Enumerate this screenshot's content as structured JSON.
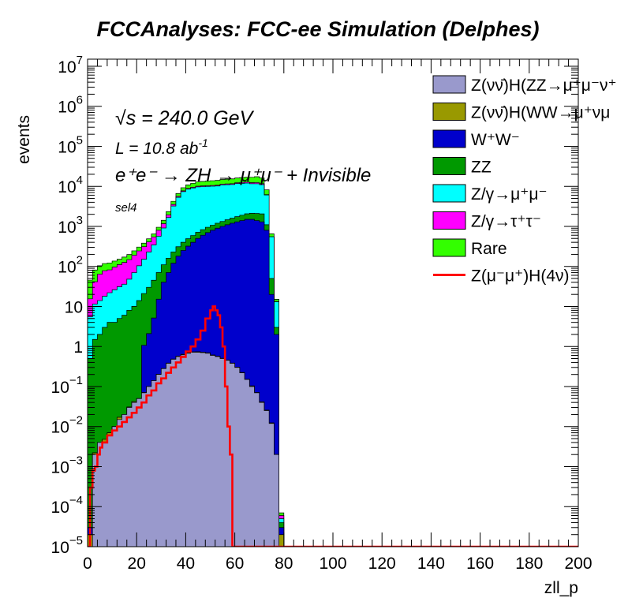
{
  "chart_data": {
    "type": "area",
    "title": "FCCAnalyses: FCC-ee Simulation (Delphes)",
    "xlabel": "zll_p",
    "ylabel": "events",
    "xlim": [
      0,
      200
    ],
    "ylim": [
      1e-05,
      15000000
    ],
    "yscale": "log",
    "stacked": true,
    "legend_position": "top-right",
    "x_ticks": [
      "0",
      "20",
      "40",
      "60",
      "80",
      "100",
      "120",
      "140",
      "160",
      "180",
      "200"
    ],
    "y_ticks": [
      {
        "base": "10",
        "exp": "−5",
        "value": 1e-05
      },
      {
        "base": "10",
        "exp": "−4",
        "value": 0.0001
      },
      {
        "base": "10",
        "exp": "−3",
        "value": 0.001
      },
      {
        "base": "10",
        "exp": "−2",
        "value": 0.01
      },
      {
        "base": "10",
        "exp": "−1",
        "value": 0.1
      },
      {
        "base": "1",
        "exp": "",
        "value": 1
      },
      {
        "base": "10",
        "exp": "",
        "value": 10
      },
      {
        "base": "10",
        "exp": "2",
        "value": 100
      },
      {
        "base": "10",
        "exp": "3",
        "value": 1000
      },
      {
        "base": "10",
        "exp": "4",
        "value": 10000
      },
      {
        "base": "10",
        "exp": "5",
        "value": 100000
      },
      {
        "base": "10",
        "exp": "6",
        "value": 1000000
      },
      {
        "base": "10",
        "exp": "7",
        "value": 10000000
      }
    ],
    "annotations": {
      "sqrt_s": "√s = 240.0 GeV",
      "sqrt_s_prefix": "√",
      "sqrt_s_rest": "s = 240.0 GeV",
      "lumi": "L = 10.8 ab",
      "lumi_exp": "-1",
      "process": "e⁺e⁻ → ZH → μ⁺μ⁻ + Invisible",
      "selection": "sel4"
    },
    "x_bins": [
      1,
      3,
      5,
      7,
      9,
      11,
      13,
      15,
      17,
      19,
      21,
      23,
      25,
      27,
      29,
      31,
      33,
      35,
      37,
      39,
      41,
      43,
      45,
      47,
      49,
      51,
      53,
      55,
      57,
      59,
      61,
      63,
      65,
      67,
      69,
      71,
      73,
      75,
      77,
      79
    ],
    "series": [
      {
        "name": "Z(νν̄)H(ZZ→μ⁺μ⁻ν⁺",
        "color": "#9999cc",
        "values": [
          1e-05,
          0.002,
          0.004,
          0.004,
          0.006,
          0.01,
          0.015,
          0.02,
          0.03,
          0.04,
          0.05,
          0.07,
          0.1,
          0.14,
          0.2,
          0.28,
          0.38,
          0.48,
          0.56,
          0.62,
          0.68,
          0.72,
          0.72,
          0.7,
          0.68,
          0.6,
          0.56,
          0.5,
          0.45,
          0.38,
          0.3,
          0.22,
          0.15,
          0.1,
          0.07,
          0.04,
          0.025,
          0.012,
          0.002,
          1e-05
        ]
      },
      {
        "name": "Z(νν̄)H(WW→μ⁺νμ",
        "color": "#999900",
        "values": [
          1e-05,
          0.0002,
          1e-05,
          0.0008,
          0.001,
          1e-05,
          0.002,
          1e-05,
          0.001,
          0.002,
          1e-05,
          0.001,
          1e-05,
          0.0008,
          0.003,
          0.002,
          0.005,
          0.008,
          0.015,
          0.02,
          0.02,
          0.018,
          0.02,
          0.018,
          0.016,
          0.014,
          0.012,
          0.01,
          0.006,
          0.006,
          0.004,
          0.005,
          0.002,
          0.004,
          0.001,
          0.0015,
          0.0008,
          0.0004,
          1e-05,
          1e-05
        ]
      },
      {
        "name": "W⁺W⁻",
        "color": "#0000cc",
        "values": [
          1e-05,
          1e-05,
          1e-05,
          1e-05,
          1e-05,
          1e-05,
          1e-05,
          1e-05,
          1e-05,
          1e-05,
          1e-05,
          1,
          2,
          5,
          15,
          40,
          70,
          120,
          180,
          250,
          320,
          400,
          500,
          600,
          700,
          800,
          900,
          1000,
          1100,
          1200,
          1300,
          1400,
          1500,
          1500,
          1400,
          1300,
          800,
          20,
          2,
          1e-05
        ]
      },
      {
        "name": "ZZ",
        "color": "#009900",
        "values": [
          0.5,
          1.5,
          2,
          3,
          4,
          4,
          5,
          6,
          8,
          10,
          14,
          20,
          28,
          40,
          55,
          70,
          90,
          110,
          130,
          150,
          170,
          190,
          210,
          230,
          250,
          270,
          300,
          330,
          360,
          400,
          450,
          500,
          560,
          620,
          700,
          750,
          300,
          30,
          1,
          1e-05
        ]
      },
      {
        "name": "Z/γ→μ⁺μ⁻",
        "color": "#00ffff",
        "values": [
          5,
          10,
          12,
          15,
          18,
          22,
          26,
          30,
          40,
          60,
          90,
          130,
          200,
          300,
          500,
          800,
          1500,
          3000,
          5000,
          7000,
          8000,
          8500,
          9000,
          9000,
          9000,
          9000,
          9000,
          9500,
          9500,
          9500,
          10000,
          10000,
          10000,
          9500,
          9500,
          9000,
          5000,
          500,
          10,
          1e-05
        ]
      },
      {
        "name": "Z/γ→τ⁺τ⁻",
        "color": "#ff00ff",
        "values": [
          10,
          30,
          50,
          60,
          60,
          70,
          80,
          90,
          100,
          120,
          140,
          160,
          180,
          200,
          230,
          260,
          280,
          300,
          320,
          340,
          360,
          380,
          400,
          420,
          440,
          460,
          480,
          500,
          520,
          560,
          600,
          650,
          700,
          750,
          800,
          600,
          100,
          2,
          0.1,
          1e-05
        ]
      },
      {
        "name": "Rare",
        "color": "#33ff00",
        "values": [
          30,
          40,
          40,
          40,
          40,
          40,
          40,
          45,
          50,
          55,
          60,
          70,
          80,
          100,
          150,
          250,
          400,
          700,
          1000,
          1500,
          2000,
          2400,
          2800,
          3000,
          3200,
          3300,
          3400,
          3500,
          3600,
          3700,
          3800,
          4000,
          4200,
          4500,
          5000,
          4500,
          2000,
          100,
          2,
          1e-05
        ]
      }
    ],
    "signal": {
      "name": "Z(μ⁻μ⁺)H(4ν)",
      "color": "#ff0000",
      "x": [
        0,
        1,
        2,
        3,
        4,
        5,
        6,
        8,
        10,
        12,
        14,
        16,
        18,
        20,
        22,
        24,
        26,
        28,
        30,
        32,
        34,
        36,
        38,
        40,
        42,
        44,
        46,
        48,
        50,
        51,
        52,
        53,
        54,
        55,
        56,
        57,
        58,
        59,
        60,
        80,
        200
      ],
      "y": [
        1e-05,
        0.0003,
        0.0008,
        0.001,
        0.002,
        0.003,
        0.004,
        0.006,
        0.008,
        0.01,
        0.013,
        0.017,
        0.022,
        0.03,
        0.04,
        0.06,
        0.08,
        0.12,
        0.16,
        0.22,
        0.3,
        0.4,
        0.55,
        0.75,
        1.0,
        1.5,
        2.5,
        5,
        8,
        10,
        8,
        6,
        3,
        1,
        0.1,
        0.01,
        0.002,
        1e-05,
        1e-05,
        1e-05,
        1e-05
      ]
    }
  }
}
